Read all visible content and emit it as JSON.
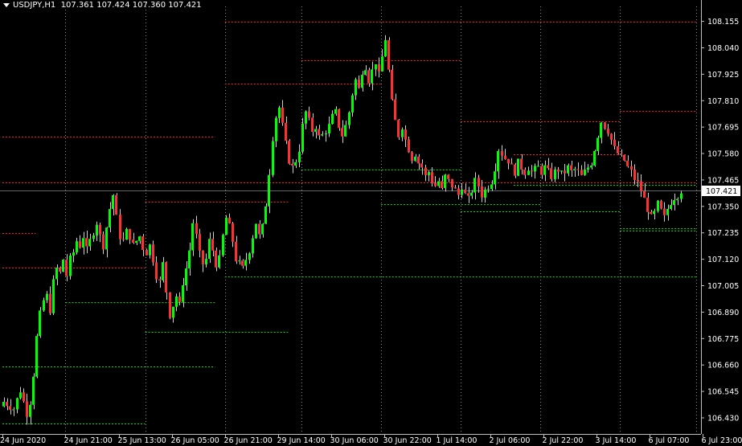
{
  "header": {
    "symbol": "USDJPY,H1",
    "open": "107.361",
    "high": "107.424",
    "low": "107.360",
    "close": "107.421"
  },
  "colors": {
    "background": "#000000",
    "bull": "#00ff00",
    "bear": "#ff3030",
    "wick": "#cfcfcf",
    "grid": "#8a8a8a",
    "resistance": "#ff2020",
    "support": "#00e000",
    "axis_text": "#ffffff",
    "current_price_line": "#5a6a6a"
  },
  "chart_data": {
    "type": "candlestick",
    "title": "",
    "ylim": [
      106.36,
      108.22
    ],
    "y_ticks": [
      "108.155",
      "108.040",
      "107.925",
      "107.810",
      "107.695",
      "107.580",
      "107.465",
      "107.350",
      "107.235",
      "107.120",
      "107.005",
      "106.890",
      "106.775",
      "106.660",
      "106.545",
      "106.430"
    ],
    "current_price": "107.421",
    "x_ticks": [
      {
        "label": "24 Jun 2020",
        "bar": 0
      },
      {
        "label": "24 Jun 21:00",
        "bar": 19
      },
      {
        "label": "25 Jun 13:00",
        "bar": 35
      },
      {
        "label": "26 Jun 05:00",
        "bar": 51
      },
      {
        "label": "26 Jun 21:00",
        "bar": 67
      },
      {
        "label": "29 Jun 14:00",
        "bar": 83
      },
      {
        "label": "30 Jun 06:00",
        "bar": 99
      },
      {
        "label": "30 Jun 22:00",
        "bar": 115
      },
      {
        "label": "1 Jul 14:00",
        "bar": 131
      },
      {
        "label": "2 Jul 06:00",
        "bar": 147
      },
      {
        "label": "2 Jul 22:00",
        "bar": 163
      },
      {
        "label": "3 Jul 14:00",
        "bar": 179
      },
      {
        "label": "6 Jul 07:00",
        "bar": 195
      },
      {
        "label": "6 Jul 23:00",
        "bar": 211
      }
    ],
    "vertical_grid_bars": [
      19,
      43,
      67,
      90,
      114,
      138,
      162,
      186,
      209
    ],
    "close_path": [
      [
        0,
        106.5
      ],
      [
        3,
        106.47
      ],
      [
        5,
        106.55
      ],
      [
        7,
        106.45
      ],
      [
        8,
        106.5
      ],
      [
        9,
        106.62
      ],
      [
        10,
        106.78
      ],
      [
        11,
        106.88
      ],
      [
        12,
        106.94
      ],
      [
        13,
        106.96
      ],
      [
        14,
        106.9
      ],
      [
        15,
        107.02
      ],
      [
        16,
        107.08
      ],
      [
        17,
        107.06
      ],
      [
        18,
        107.12
      ],
      [
        19,
        107.05
      ],
      [
        20,
        107.12
      ],
      [
        21,
        107.15
      ],
      [
        22,
        107.2
      ],
      [
        23,
        107.18
      ],
      [
        24,
        107.22
      ],
      [
        25,
        107.16
      ],
      [
        26,
        107.2
      ],
      [
        27,
        107.24
      ],
      [
        28,
        107.28
      ],
      [
        29,
        107.22
      ],
      [
        30,
        107.18
      ],
      [
        31,
        107.26
      ],
      [
        32,
        107.34
      ],
      [
        33,
        107.4
      ],
      [
        34,
        107.3
      ],
      [
        35,
        107.22
      ],
      [
        36,
        107.2
      ],
      [
        37,
        107.24
      ],
      [
        38,
        107.22
      ],
      [
        39,
        107.18
      ],
      [
        40,
        107.2
      ],
      [
        41,
        107.22
      ],
      [
        42,
        107.17
      ],
      [
        43,
        107.15
      ],
      [
        44,
        107.18
      ],
      [
        45,
        107.12
      ],
      [
        46,
        107.05
      ],
      [
        47,
        107.02
      ],
      [
        48,
        107.1
      ],
      [
        49,
        106.98
      ],
      [
        50,
        106.88
      ],
      [
        51,
        106.92
      ],
      [
        52,
        106.96
      ],
      [
        53,
        106.92
      ],
      [
        54,
        107.02
      ],
      [
        55,
        107.08
      ],
      [
        56,
        107.16
      ],
      [
        57,
        107.28
      ],
      [
        58,
        107.22
      ],
      [
        59,
        107.14
      ],
      [
        60,
        107.1
      ],
      [
        61,
        107.12
      ],
      [
        62,
        107.2
      ],
      [
        63,
        107.16
      ],
      [
        64,
        107.1
      ],
      [
        65,
        107.12
      ],
      [
        66,
        107.22
      ],
      [
        67,
        107.3
      ],
      [
        68,
        107.26
      ],
      [
        69,
        107.2
      ],
      [
        70,
        107.12
      ],
      [
        71,
        107.1
      ],
      [
        72,
        107.08
      ],
      [
        73,
        107.12
      ],
      [
        74,
        107.16
      ],
      [
        75,
        107.22
      ],
      [
        76,
        107.28
      ],
      [
        77,
        107.22
      ],
      [
        78,
        107.26
      ],
      [
        79,
        107.36
      ],
      [
        80,
        107.5
      ],
      [
        81,
        107.65
      ],
      [
        82,
        107.74
      ],
      [
        83,
        107.78
      ],
      [
        84,
        107.7
      ],
      [
        85,
        107.62
      ],
      [
        86,
        107.55
      ],
      [
        87,
        107.52
      ],
      [
        88,
        107.55
      ],
      [
        89,
        107.6
      ],
      [
        90,
        107.7
      ],
      [
        91,
        107.76
      ],
      [
        92,
        107.72
      ],
      [
        93,
        107.68
      ],
      [
        94,
        107.7
      ],
      [
        95,
        107.65
      ],
      [
        96,
        107.66
      ],
      [
        97,
        107.68
      ],
      [
        98,
        107.7
      ],
      [
        99,
        107.74
      ],
      [
        100,
        107.76
      ],
      [
        101,
        107.7
      ],
      [
        102,
        107.66
      ],
      [
        103,
        107.7
      ],
      [
        104,
        107.76
      ],
      [
        105,
        107.84
      ],
      [
        106,
        107.9
      ],
      [
        107,
        107.86
      ],
      [
        108,
        107.94
      ],
      [
        109,
        107.96
      ],
      [
        110,
        107.9
      ],
      [
        111,
        107.94
      ],
      [
        112,
        107.98
      ],
      [
        113,
        107.92
      ],
      [
        114,
        108.0
      ],
      [
        115,
        108.08
      ],
      [
        116,
        107.94
      ],
      [
        117,
        107.8
      ],
      [
        118,
        107.72
      ],
      [
        119,
        107.66
      ],
      [
        120,
        107.7
      ],
      [
        121,
        107.64
      ],
      [
        122,
        107.6
      ],
      [
        123,
        107.56
      ],
      [
        124,
        107.58
      ],
      [
        125,
        107.54
      ],
      [
        126,
        107.52
      ],
      [
        127,
        107.48
      ],
      [
        128,
        107.5
      ],
      [
        129,
        107.46
      ],
      [
        130,
        107.44
      ],
      [
        131,
        107.46
      ],
      [
        132,
        107.42
      ],
      [
        133,
        107.48
      ],
      [
        134,
        107.46
      ],
      [
        135,
        107.44
      ],
      [
        136,
        107.42
      ],
      [
        137,
        107.4
      ],
      [
        138,
        107.44
      ],
      [
        139,
        107.4
      ],
      [
        140,
        107.38
      ],
      [
        141,
        107.42
      ],
      [
        142,
        107.46
      ],
      [
        143,
        107.44
      ],
      [
        144,
        107.4
      ],
      [
        145,
        107.42
      ],
      [
        146,
        107.44
      ],
      [
        147,
        107.46
      ],
      [
        148,
        107.52
      ],
      [
        149,
        107.6
      ],
      [
        150,
        107.58
      ],
      [
        151,
        107.56
      ],
      [
        152,
        107.55
      ],
      [
        153,
        107.52
      ],
      [
        154,
        107.5
      ],
      [
        155,
        107.54
      ],
      [
        156,
        107.52
      ],
      [
        157,
        107.5
      ],
      [
        158,
        107.52
      ],
      [
        159,
        107.5
      ],
      [
        160,
        107.51
      ],
      [
        161,
        107.52
      ],
      [
        162,
        107.5
      ],
      [
        163,
        107.52
      ],
      [
        164,
        107.5
      ],
      [
        165,
        107.48
      ],
      [
        166,
        107.5
      ],
      [
        167,
        107.51
      ],
      [
        168,
        107.49
      ],
      [
        169,
        107.5
      ],
      [
        170,
        107.52
      ],
      [
        171,
        107.5
      ],
      [
        172,
        107.51
      ],
      [
        173,
        107.5
      ],
      [
        174,
        107.48
      ],
      [
        175,
        107.5
      ],
      [
        176,
        107.52
      ],
      [
        177,
        107.54
      ],
      [
        178,
        107.6
      ],
      [
        179,
        107.66
      ],
      [
        180,
        107.72
      ],
      [
        181,
        107.7
      ],
      [
        182,
        107.68
      ],
      [
        183,
        107.64
      ],
      [
        184,
        107.6
      ],
      [
        185,
        107.58
      ],
      [
        186,
        107.56
      ],
      [
        187,
        107.55
      ],
      [
        188,
        107.52
      ],
      [
        189,
        107.5
      ],
      [
        190,
        107.47
      ],
      [
        191,
        107.45
      ],
      [
        192,
        107.42
      ],
      [
        193,
        107.38
      ],
      [
        194,
        107.34
      ],
      [
        195,
        107.3
      ],
      [
        196,
        107.32
      ],
      [
        197,
        107.36
      ],
      [
        198,
        107.33
      ],
      [
        199,
        107.3
      ],
      [
        200,
        107.34
      ],
      [
        201,
        107.37
      ],
      [
        202,
        107.39
      ],
      [
        203,
        107.4
      ],
      [
        204,
        107.42
      ]
    ],
    "levels": [
      {
        "color": "bear",
        "price": 108.155,
        "from": 67,
        "to": 209
      },
      {
        "color": "bear",
        "price": 107.985,
        "from": 90,
        "to": 138
      },
      {
        "color": "bear",
        "price": 107.885,
        "from": 67,
        "to": 114
      },
      {
        "color": "bear",
        "price": 107.765,
        "from": 186,
        "to": 209
      },
      {
        "color": "bear",
        "price": 107.72,
        "from": 138,
        "to": 186
      },
      {
        "color": "bear",
        "price": 107.655,
        "from": 0,
        "to": 64
      },
      {
        "color": "bear",
        "price": 107.575,
        "from": 154,
        "to": 186
      },
      {
        "color": "bear",
        "price": 107.455,
        "from": 0,
        "to": 209
      },
      {
        "color": "bear",
        "price": 107.37,
        "from": 43,
        "to": 86
      },
      {
        "color": "bear",
        "price": 107.235,
        "from": 0,
        "to": 10
      },
      {
        "color": "bear",
        "price": 107.085,
        "from": 0,
        "to": 43
      },
      {
        "color": "bull",
        "price": 107.51,
        "from": 90,
        "to": 138
      },
      {
        "color": "bull",
        "price": 107.445,
        "from": 154,
        "to": 209
      },
      {
        "color": "bull",
        "price": 107.36,
        "from": 114,
        "to": 162
      },
      {
        "color": "bull",
        "price": 107.33,
        "from": 138,
        "to": 186
      },
      {
        "color": "bull",
        "price": 107.255,
        "from": 186,
        "to": 209
      },
      {
        "color": "bull",
        "price": 107.245,
        "from": 186,
        "to": 209
      },
      {
        "color": "bull",
        "price": 107.045,
        "from": 67,
        "to": 209
      },
      {
        "color": "bull",
        "price": 106.935,
        "from": 19,
        "to": 64
      },
      {
        "color": "bull",
        "price": 106.805,
        "from": 43,
        "to": 86
      },
      {
        "color": "bull",
        "price": 106.655,
        "from": 0,
        "to": 64
      },
      {
        "color": "bull",
        "price": 106.405,
        "from": 0,
        "to": 43
      }
    ]
  }
}
